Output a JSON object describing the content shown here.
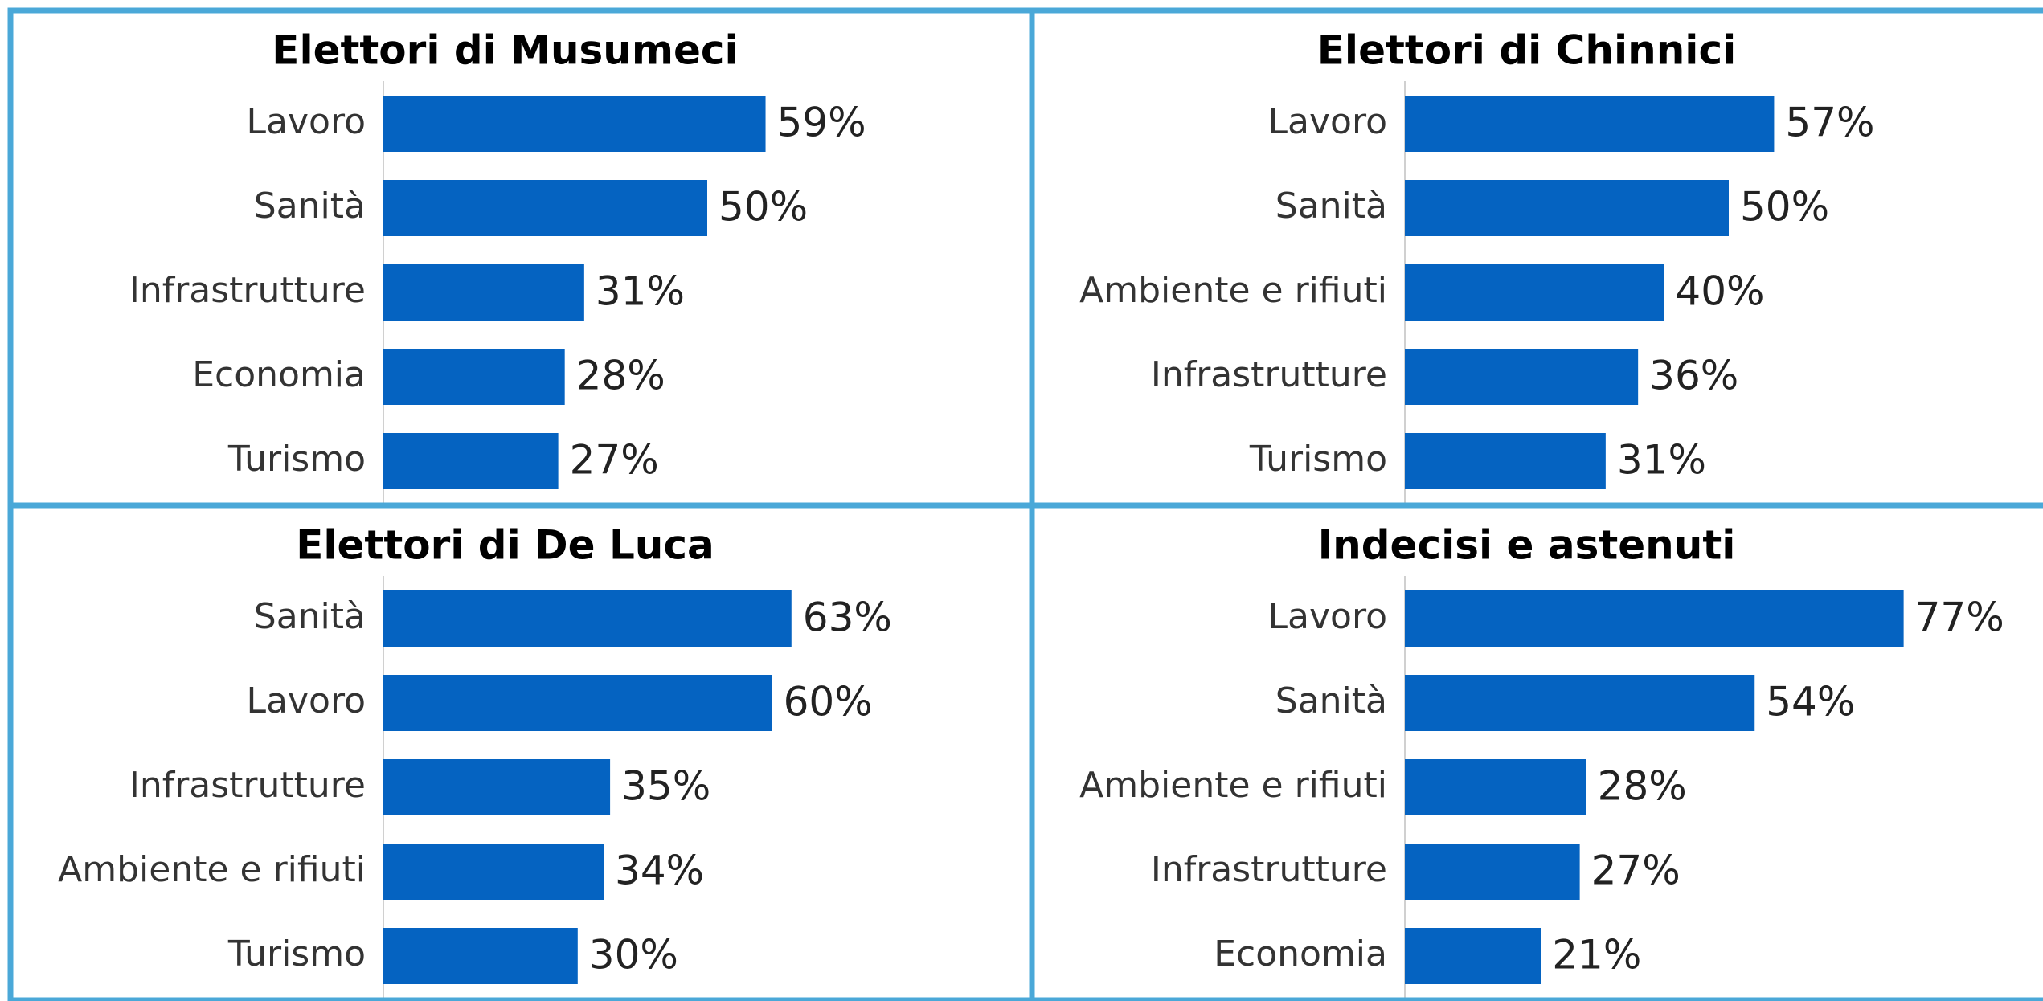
{
  "chart_data": [
    {
      "type": "bar",
      "orientation": "horizontal",
      "title": "Elettori di Musumeci",
      "color": "#0563c1",
      "categories": [
        "Lavoro",
        "Sanità",
        "Infrastrutture",
        "Economia",
        "Turismo"
      ],
      "values": [
        59,
        50,
        31,
        28,
        27
      ],
      "value_labels": [
        "59%",
        "50%",
        "31%",
        "28%",
        "27%"
      ],
      "xlim": [
        0,
        100
      ]
    },
    {
      "type": "bar",
      "orientation": "horizontal",
      "title": "Elettori di Chinnici",
      "color": "#0563c1",
      "categories": [
        "Lavoro",
        "Sanità",
        "Ambiente e rifiuti",
        "Infrastrutture",
        "Turismo"
      ],
      "values": [
        57,
        50,
        40,
        36,
        31
      ],
      "value_labels": [
        "57%",
        "50%",
        "40%",
        "36%",
        "31%"
      ],
      "xlim": [
        0,
        100
      ]
    },
    {
      "type": "bar",
      "orientation": "horizontal",
      "title": "Elettori di De Luca",
      "color": "#0563c1",
      "categories": [
        "Sanità",
        "Lavoro",
        "Infrastrutture",
        "Ambiente e rifiuti",
        "Turismo"
      ],
      "values": [
        63,
        60,
        35,
        34,
        30
      ],
      "value_labels": [
        "63%",
        "60%",
        "35%",
        "34%",
        "30%"
      ],
      "xlim": [
        0,
        100
      ]
    },
    {
      "type": "bar",
      "orientation": "horizontal",
      "title": "Indecisi e astenuti",
      "color": "#0563c1",
      "categories": [
        "Lavoro",
        "Sanità",
        "Ambiente e rifiuti",
        "Infrastrutture",
        "Economia"
      ],
      "values": [
        77,
        54,
        28,
        27,
        21
      ],
      "value_labels": [
        "77%",
        "54%",
        "28%",
        "27%",
        "21%"
      ],
      "xlim": [
        0,
        100
      ]
    }
  ]
}
